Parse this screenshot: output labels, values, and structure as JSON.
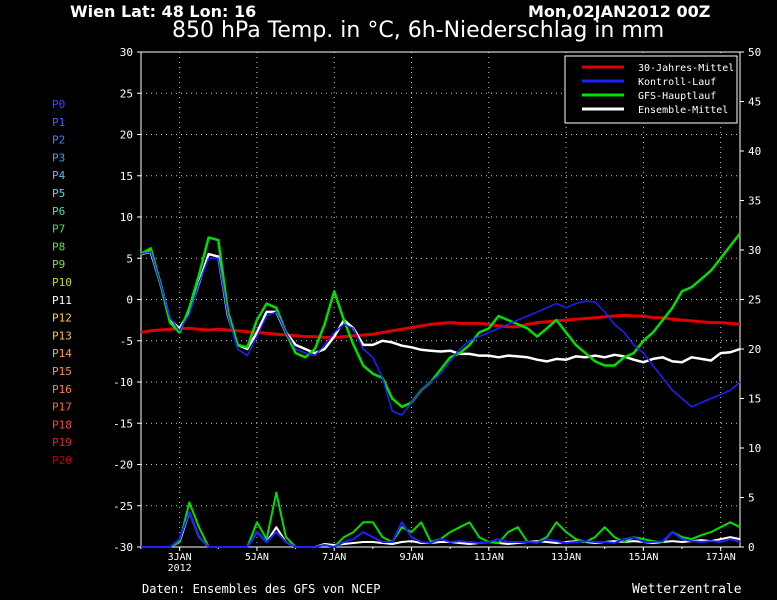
{
  "header": {
    "location": "Wien   Lat: 48 Lon: 16",
    "date": "Mon,02JAN2012 00Z",
    "title": "850 hPa Temp. in °C, 6h-Niederschlag in mm"
  },
  "footer": {
    "left": "Daten: Ensembles des GFS von NCEP",
    "right": "Wetterzentrale"
  },
  "chart_data": {
    "type": "line",
    "title": "850 hPa Temp. in °C, 6h-Niederschlag in mm",
    "x_start": "2012-01-02T00:00Z",
    "x_step_hours": 6,
    "x_ticks": [
      "3JAN\n2012",
      "5JAN",
      "7JAN",
      "9JAN",
      "11JAN",
      "13JAN",
      "15JAN",
      "17JAN"
    ],
    "y_left": {
      "label": "°C",
      "ylim": [
        -30,
        30
      ],
      "ticks": [
        30,
        25,
        20,
        15,
        10,
        5,
        0,
        -5,
        -10,
        -15,
        -20,
        -25,
        -30
      ]
    },
    "y_right": {
      "label": "mm",
      "ylim": [
        0,
        50
      ],
      "ticks": [
        50,
        45,
        40,
        35,
        30,
        25,
        20,
        15,
        10,
        5,
        0
      ]
    },
    "grid": true,
    "legend_position": "top-right",
    "legend": [
      {
        "name": "30-Jahres-Mittel",
        "color": "#e00000"
      },
      {
        "name": "Kontroll-Lauf",
        "color": "#2020ff"
      },
      {
        "name": "GFS-Hauptlauf",
        "color": "#00e000"
      },
      {
        "name": "Ensemble-Mittel",
        "color": "#ffffff"
      }
    ],
    "members": [
      {
        "name": "P0",
        "color": "#4040ff"
      },
      {
        "name": "P1",
        "color": "#4060ff"
      },
      {
        "name": "P2",
        "color": "#4080ff"
      },
      {
        "name": "P3",
        "color": "#40a0ff"
      },
      {
        "name": "P4",
        "color": "#40c0ff"
      },
      {
        "name": "P5",
        "color": "#40e0e0"
      },
      {
        "name": "P6",
        "color": "#40e0a0"
      },
      {
        "name": "P7",
        "color": "#40e060"
      },
      {
        "name": "P8",
        "color": "#60e040"
      },
      {
        "name": "P9",
        "color": "#80e040"
      },
      {
        "name": "P10",
        "color": "#c0e000"
      },
      {
        "name": "P11",
        "color": "#ffffff"
      },
      {
        "name": "P12",
        "color": "#ffd040"
      },
      {
        "name": "P13",
        "color": "#ffc040"
      },
      {
        "name": "P14",
        "color": "#ffa040"
      },
      {
        "name": "P15",
        "color": "#ff9040"
      },
      {
        "name": "P16",
        "color": "#ff8040"
      },
      {
        "name": "P17",
        "color": "#ff6040"
      },
      {
        "name": "P18",
        "color": "#ff4040"
      },
      {
        "name": "P19",
        "color": "#e02020"
      },
      {
        "name": "P20",
        "color": "#c00000"
      }
    ],
    "series": [
      {
        "name": "30-Jahres-Mittel",
        "color": "#e00000",
        "values": [
          -4.0,
          -3.8,
          -3.7,
          -3.6,
          -3.5,
          -3.5,
          -3.6,
          -3.7,
          -3.6,
          -3.7,
          -3.8,
          -3.9,
          -4.0,
          -4.1,
          -4.2,
          -4.3,
          -4.4,
          -4.5,
          -4.5,
          -4.6,
          -4.6,
          -4.5,
          -4.4,
          -4.3,
          -4.2,
          -4.0,
          -3.8,
          -3.6,
          -3.4,
          -3.2,
          -3.0,
          -2.9,
          -2.8,
          -2.9,
          -2.9,
          -2.9,
          -3.0,
          -3.2,
          -3.3,
          -3.3,
          -3.0,
          -2.8,
          -2.7,
          -2.6,
          -2.5,
          -2.4,
          -2.3,
          -2.2,
          -2.1,
          -2.0,
          -1.9,
          -2.0,
          -2.0,
          -2.2,
          -2.2,
          -2.4,
          -2.5,
          -2.6,
          -2.7,
          -2.8,
          -2.8,
          -2.9,
          -3.0
        ]
      },
      {
        "name": "Ensemble-Mittel",
        "color": "#ffffff",
        "values": [
          5.5,
          5.8,
          2.0,
          -2.5,
          -3.5,
          -1.5,
          2.0,
          5.5,
          5.2,
          -2.0,
          -5.5,
          -6.0,
          -4.0,
          -1.5,
          -1.5,
          -4.0,
          -5.5,
          -6.0,
          -6.5,
          -6.0,
          -4.5,
          -2.5,
          -3.5,
          -5.5,
          -5.5,
          -5.0,
          -5.2,
          -5.6,
          -5.8,
          -6.1,
          -6.2,
          -6.3,
          -6.2,
          -6.6,
          -6.6,
          -6.8,
          -6.8,
          -7.0,
          -6.8,
          -6.9,
          -7.0,
          -7.3,
          -7.5,
          -7.2,
          -7.3,
          -6.9,
          -7.0,
          -6.8,
          -7.0,
          -6.7,
          -6.9,
          -7.3,
          -7.6,
          -7.2,
          -7.0,
          -7.5,
          -7.6,
          -7.0,
          -7.2,
          -7.4,
          -6.5,
          -6.4,
          -6.0
        ]
      },
      {
        "name": "GFS-Hauptlauf",
        "color": "#00e000",
        "values": [
          5.5,
          6.2,
          2.0,
          -2.8,
          -4.0,
          -1.0,
          3.0,
          7.5,
          7.2,
          -1.5,
          -5.5,
          -5.8,
          -2.5,
          -0.5,
          -1.0,
          -4.0,
          -6.5,
          -7.0,
          -6.0,
          -3.0,
          1.0,
          -2.5,
          -5.5,
          -8.0,
          -9.0,
          -9.5,
          -12.0,
          -13.0,
          -12.5,
          -11.0,
          -10.0,
          -8.5,
          -7.0,
          -6.5,
          -5.5,
          -4.0,
          -3.5,
          -2.0,
          -2.5,
          -3.0,
          -3.5,
          -4.5,
          -3.5,
          -2.5,
          -4.0,
          -5.5,
          -6.5,
          -7.5,
          -8.0,
          -8.0,
          -7.0,
          -6.5,
          -5.0,
          -4.0,
          -2.5,
          -1.0,
          1.0,
          1.5,
          2.5,
          3.5,
          5.0,
          6.5,
          8.0
        ]
      },
      {
        "name": "Kontroll-Lauf",
        "color": "#2020ff",
        "values": [
          5.5,
          5.8,
          2.0,
          -2.2,
          -3.8,
          -1.8,
          2.0,
          5.0,
          5.0,
          -2.0,
          -6.0,
          -6.8,
          -4.5,
          -2.0,
          -1.5,
          -4.0,
          -6.0,
          -6.5,
          -6.8,
          -5.5,
          -4.0,
          -3.0,
          -3.5,
          -6.0,
          -7.0,
          -9.5,
          -13.5,
          -14.0,
          -12.5,
          -11.0,
          -10.0,
          -9.0,
          -7.5,
          -6.0,
          -5.0,
          -4.5,
          -4.0,
          -3.5,
          -3.0,
          -2.5,
          -2.0,
          -1.5,
          -1.0,
          -0.5,
          -1.0,
          -0.5,
          -0.2,
          -0.3,
          -1.5,
          -3.0,
          -4.0,
          -5.5,
          -6.5,
          -8.0,
          -9.5,
          -11.0,
          -12.0,
          -13.0,
          -12.5,
          -12.0,
          -11.5,
          -11.0,
          -10.0
        ]
      }
    ],
    "precip_series": [
      {
        "name": "Ensemble-Mittel",
        "color": "#ffffff",
        "values": [
          0,
          0,
          0,
          0,
          0.5,
          3.5,
          1.0,
          0,
          0,
          0,
          0,
          0,
          1.5,
          0.5,
          2.0,
          0.5,
          0,
          0,
          0,
          0.3,
          0.2,
          0.3,
          0.4,
          0.5,
          0.5,
          0.4,
          0.3,
          0.5,
          0.6,
          0.4,
          0.4,
          0.5,
          0.5,
          0.4,
          0.3,
          0.4,
          0.5,
          0.4,
          0.3,
          0.4,
          0.5,
          0.6,
          0.5,
          0.4,
          0.5,
          0.6,
          0.5,
          0.4,
          0.5,
          0.6,
          0.5,
          0.6,
          0.5,
          0.4,
          0.5,
          0.6,
          0.5,
          0.6,
          0.7,
          0.6,
          0.8,
          1.0,
          0.8
        ]
      },
      {
        "name": "GFS-Hauptlauf",
        "color": "#00e000",
        "values": [
          0,
          0,
          0,
          0,
          0.5,
          4.5,
          2.0,
          0,
          0,
          0,
          0,
          0,
          2.5,
          0.8,
          5.5,
          1.0,
          0,
          0,
          0,
          0.2,
          0,
          1.0,
          1.5,
          2.5,
          2.5,
          1.0,
          0.5,
          2.0,
          1.5,
          2.5,
          0.5,
          0.8,
          1.5,
          2.0,
          2.5,
          1.0,
          0.5,
          0.4,
          1.5,
          2.0,
          0.5,
          0.5,
          1.0,
          2.5,
          1.5,
          0.8,
          0.5,
          1.0,
          2.0,
          1.0,
          0.5,
          1.0,
          0.8,
          0.6,
          0.5,
          1.5,
          1.0,
          0.8,
          1.2,
          1.5,
          2.0,
          2.5,
          2.0
        ]
      },
      {
        "name": "Kontroll-Lauf",
        "color": "#2020ff",
        "values": [
          0,
          0,
          0,
          0,
          0.8,
          3.5,
          1.0,
          0,
          0,
          0,
          0,
          0,
          1.5,
          0.5,
          1.5,
          0.5,
          0,
          0,
          0,
          0.2,
          0,
          0.5,
          0.8,
          1.5,
          1.0,
          0.5,
          0.5,
          2.5,
          1.0,
          0.5,
          0.4,
          0.8,
          0.5,
          0.6,
          0.5,
          0.4,
          0.5,
          0.8,
          0.5,
          0.5,
          0.5,
          0.4,
          0.8,
          0.6,
          0.4,
          0.5,
          0.6,
          0.5,
          0.5,
          0.4,
          0.8,
          1.0,
          0.5,
          0.5,
          0.6,
          1.5,
          0.8,
          0.6,
          0.5,
          0.6,
          0.5,
          0.8,
          0.5
        ]
      }
    ]
  }
}
